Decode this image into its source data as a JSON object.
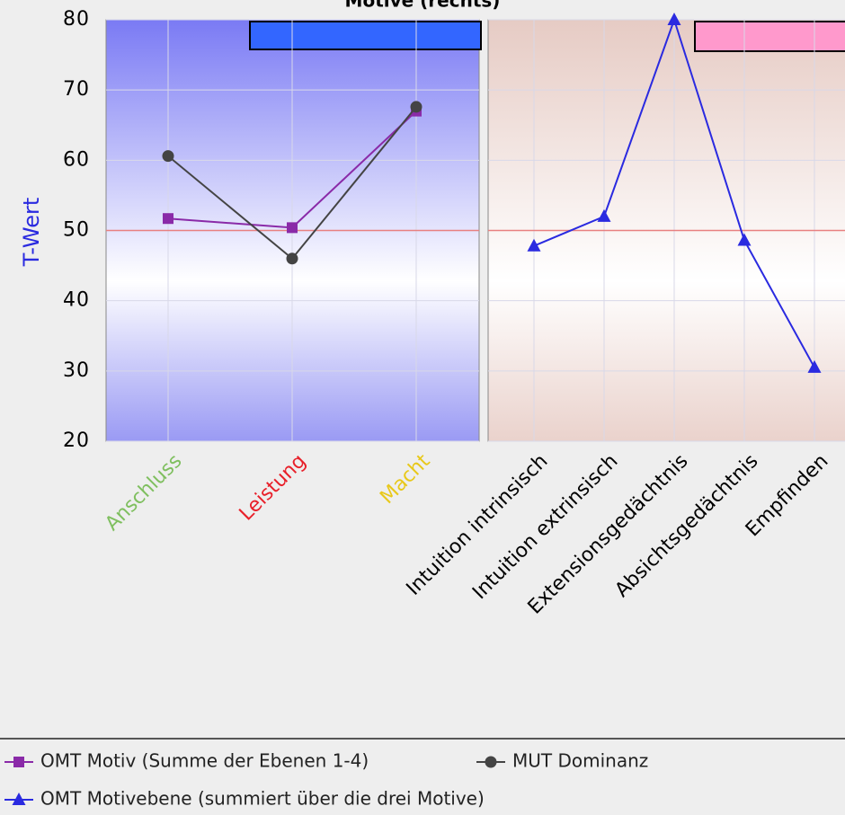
{
  "chart_data": [
    {
      "type": "line",
      "title": "Motive (rechts)",
      "y_label": "T-Wert",
      "categories": [
        "Anschluss",
        "Leistung",
        "Macht"
      ],
      "category_colors": [
        "#7fbf5f",
        "#e8202a",
        "#e8c81a"
      ],
      "ylim": [
        20,
        80
      ],
      "yticks": [
        20,
        30,
        40,
        50,
        60,
        70,
        80
      ],
      "hline": 50,
      "series": [
        {
          "name": "OMT Motiv (Summe der Ebenen 1-4)",
          "color": "#8a2aa8",
          "marker": "square",
          "values": [
            51.7,
            50.4,
            67
          ]
        },
        {
          "name": "MUT Dominanz",
          "color": "#444444",
          "marker": "circle",
          "values": [
            60.6,
            46,
            67.6
          ]
        }
      ]
    },
    {
      "type": "line",
      "categories": [
        "Intuition intrinsisch",
        "Intuition extrinsisch",
        "Extensionsgedächtnis",
        "Absichtsgedächtnis",
        "Empfinden"
      ],
      "ylim": [
        20,
        80
      ],
      "yticks": [
        20,
        30,
        40,
        50,
        60,
        70,
        80
      ],
      "hline": 50,
      "series": [
        {
          "name": "OMT Motivebene (summiert über die drei Motive)",
          "color": "#2a2ae0",
          "marker": "triangle",
          "values": [
            47.8,
            52,
            80,
            48.6,
            30.5
          ]
        }
      ]
    }
  ]
}
